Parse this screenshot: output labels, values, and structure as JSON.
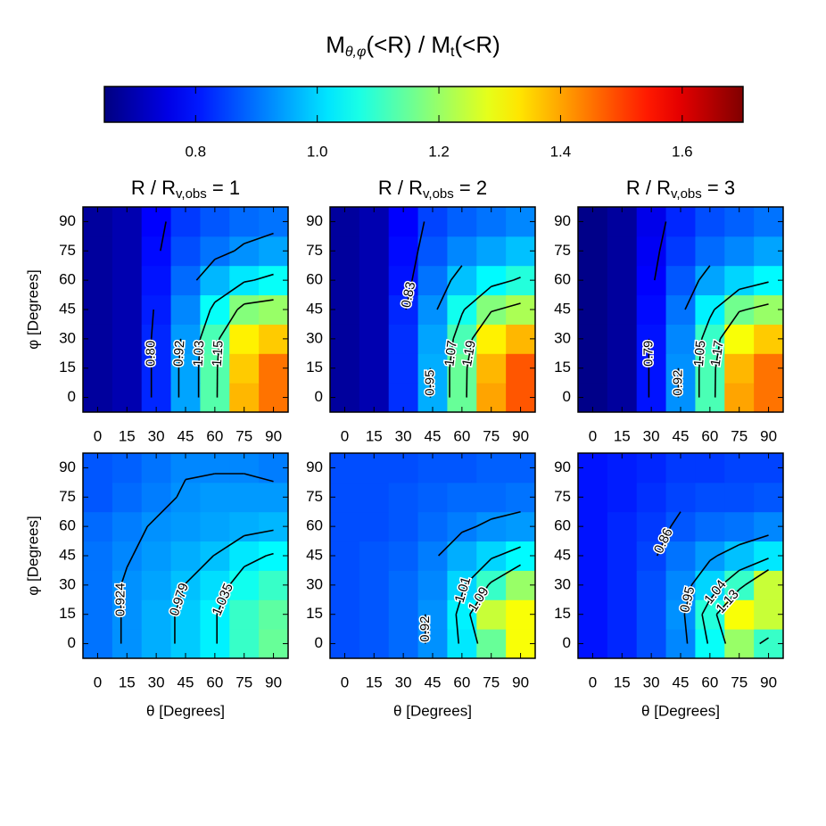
{
  "title": {
    "main": "M",
    "sub": "θ,φ",
    "mid": "(<R) / M",
    "sub2": "t",
    "end": "(<R)"
  },
  "colorbar": {
    "colormap": "jet",
    "clim": [
      0.65,
      1.7
    ],
    "ticks": [
      0.8,
      {
        "value": 1.0,
        "label": "1.0"
      },
      1.2,
      1.4,
      1.6
    ]
  },
  "chart_data": [
    {
      "type": "heatmap",
      "title": {
        "text": "R / R",
        "sub": "v,obs",
        "tail": " = 1"
      },
      "ylabel": "φ [Degrees]",
      "x": [
        0,
        15,
        30,
        45,
        60,
        75,
        90
      ],
      "y": [
        0,
        15,
        30,
        45,
        60,
        75,
        90
      ],
      "xlim": [
        -7.5,
        97.5
      ],
      "ylim": [
        -7.5,
        97.5
      ],
      "xticks": [
        0,
        15,
        30,
        45,
        60,
        75,
        90
      ],
      "yticks": [
        0,
        15,
        30,
        45,
        60,
        75,
        90
      ],
      "values": [
        [
          0.68,
          0.7,
          0.82,
          0.95,
          1.13,
          1.38,
          1.45
        ],
        [
          0.68,
          0.7,
          0.82,
          0.95,
          1.13,
          1.36,
          1.45
        ],
        [
          0.68,
          0.7,
          0.82,
          0.94,
          1.12,
          1.32,
          1.36
        ],
        [
          0.68,
          0.7,
          0.81,
          0.92,
          1.05,
          1.18,
          1.2
        ],
        [
          0.68,
          0.7,
          0.8,
          0.89,
          0.97,
          1.02,
          1.05
        ],
        [
          0.68,
          0.7,
          0.79,
          0.86,
          0.9,
          0.93,
          0.95
        ],
        [
          0.68,
          0.7,
          0.78,
          0.84,
          0.87,
          0.89,
          0.9
        ]
      ],
      "contour_levels": [
        {
          "value": 0.8,
          "label": "0.80"
        },
        0.92,
        1.03,
        1.15
      ]
    },
    {
      "type": "heatmap",
      "title": {
        "text": "R / R",
        "sub": "v,obs",
        "tail": " = 2"
      },
      "x": [
        0,
        15,
        30,
        45,
        60,
        75,
        90
      ],
      "y": [
        0,
        15,
        30,
        45,
        60,
        75,
        90
      ],
      "xlim": [
        -7.5,
        97.5
      ],
      "ylim": [
        -7.5,
        97.5
      ],
      "xticks": [
        0,
        15,
        30,
        45,
        60,
        75,
        90
      ],
      "yticks": [
        0,
        15,
        30,
        45,
        60,
        75,
        90
      ],
      "values": [
        [
          0.68,
          0.7,
          0.83,
          0.96,
          1.15,
          1.4,
          1.48
        ],
        [
          0.68,
          0.7,
          0.83,
          0.96,
          1.15,
          1.38,
          1.48
        ],
        [
          0.68,
          0.7,
          0.83,
          0.95,
          1.12,
          1.32,
          1.38
        ],
        [
          0.68,
          0.7,
          0.82,
          0.93,
          1.06,
          1.18,
          1.22
        ],
        [
          0.68,
          0.7,
          0.8,
          0.9,
          0.98,
          1.04,
          1.08
        ],
        [
          0.68,
          0.7,
          0.79,
          0.87,
          0.92,
          0.95,
          0.98
        ],
        [
          0.68,
          0.7,
          0.78,
          0.85,
          0.88,
          0.9,
          0.92
        ]
      ],
      "contour_levels": [
        0.83,
        0.95,
        1.07,
        1.19
      ]
    },
    {
      "type": "heatmap",
      "title": {
        "text": "R / R",
        "sub": "v,obs",
        "tail": " = 3"
      },
      "x": [
        0,
        15,
        30,
        45,
        60,
        75,
        90
      ],
      "y": [
        0,
        15,
        30,
        45,
        60,
        75,
        90
      ],
      "xlim": [
        -7.5,
        97.5
      ],
      "ylim": [
        -7.5,
        97.5
      ],
      "xticks": [
        0,
        15,
        30,
        45,
        60,
        75,
        90
      ],
      "yticks": [
        0,
        15,
        30,
        45,
        60,
        75,
        90
      ],
      "values": [
        [
          0.66,
          0.68,
          0.8,
          0.93,
          1.12,
          1.4,
          1.45
        ],
        [
          0.66,
          0.68,
          0.8,
          0.93,
          1.12,
          1.38,
          1.45
        ],
        [
          0.66,
          0.68,
          0.8,
          0.92,
          1.1,
          1.3,
          1.36
        ],
        [
          0.66,
          0.68,
          0.79,
          0.9,
          1.03,
          1.16,
          1.2
        ],
        [
          0.66,
          0.68,
          0.78,
          0.87,
          0.95,
          1.0,
          1.04
        ],
        [
          0.66,
          0.68,
          0.77,
          0.84,
          0.89,
          0.92,
          0.95
        ],
        [
          0.66,
          0.68,
          0.76,
          0.82,
          0.86,
          0.88,
          0.9
        ]
      ],
      "contour_levels": [
        0.79,
        0.92,
        1.05,
        1.17
      ]
    },
    {
      "type": "heatmap",
      "ylabel": "φ [Degrees]",
      "xlabel": "θ [Degrees]",
      "x": [
        0,
        15,
        30,
        45,
        60,
        75,
        90
      ],
      "y": [
        0,
        15,
        30,
        45,
        60,
        75,
        90
      ],
      "xlim": [
        -7.5,
        97.5
      ],
      "ylim": [
        -7.5,
        97.5
      ],
      "xticks": [
        0,
        15,
        30,
        45,
        60,
        75,
        90
      ],
      "yticks": [
        0,
        15,
        30,
        45,
        60,
        75,
        90
      ],
      "values": [
        [
          0.9,
          0.93,
          0.96,
          0.99,
          1.03,
          1.1,
          1.15
        ],
        [
          0.9,
          0.93,
          0.96,
          0.99,
          1.03,
          1.1,
          1.14
        ],
        [
          0.9,
          0.93,
          0.95,
          0.98,
          1.01,
          1.06,
          1.1
        ],
        [
          0.9,
          0.92,
          0.94,
          0.96,
          0.98,
          1.02,
          1.04
        ],
        [
          0.89,
          0.91,
          0.93,
          0.94,
          0.95,
          0.96,
          0.97
        ],
        [
          0.87,
          0.89,
          0.91,
          0.93,
          0.94,
          0.94,
          0.94
        ],
        [
          0.87,
          0.88,
          0.9,
          0.92,
          0.92,
          0.92,
          0.91
        ]
      ],
      "contour_levels": [
        0.924,
        0.979,
        1.035
      ]
    },
    {
      "type": "heatmap",
      "xlabel": "θ [Degrees]",
      "x": [
        0,
        15,
        30,
        45,
        60,
        75,
        90
      ],
      "y": [
        0,
        15,
        30,
        45,
        60,
        75,
        90
      ],
      "xlim": [
        -7.5,
        97.5
      ],
      "ylim": [
        -7.5,
        97.5
      ],
      "xticks": [
        0,
        15,
        30,
        45,
        60,
        75,
        90
      ],
      "yticks": [
        0,
        15,
        30,
        45,
        60,
        75,
        90
      ],
      "values": [
        [
          0.86,
          0.87,
          0.89,
          0.93,
          1.02,
          1.15,
          1.3
        ],
        [
          0.86,
          0.87,
          0.89,
          0.93,
          1.03,
          1.25,
          1.3
        ],
        [
          0.86,
          0.87,
          0.89,
          0.92,
          1.0,
          1.1,
          1.2
        ],
        [
          0.86,
          0.87,
          0.88,
          0.91,
          0.96,
          1.0,
          1.04
        ],
        [
          0.86,
          0.86,
          0.87,
          0.89,
          0.91,
          0.93,
          0.94
        ],
        [
          0.86,
          0.86,
          0.87,
          0.88,
          0.89,
          0.89,
          0.9
        ],
        [
          0.86,
          0.86,
          0.86,
          0.87,
          0.87,
          0.88,
          0.88
        ]
      ],
      "contour_levels": [
        0.92,
        1.01,
        1.09
      ]
    },
    {
      "type": "heatmap",
      "xlabel": "θ [Degrees]",
      "x": [
        0,
        15,
        30,
        45,
        60,
        75,
        90
      ],
      "y": [
        0,
        15,
        30,
        45,
        60,
        75,
        90
      ],
      "xlim": [
        -7.5,
        97.5
      ],
      "ylim": [
        -7.5,
        97.5
      ],
      "xticks": [
        0,
        15,
        30,
        45,
        60,
        75,
        90
      ],
      "yticks": [
        0,
        15,
        30,
        45,
        60,
        75,
        90
      ],
      "values": [
        [
          0.8,
          0.82,
          0.86,
          0.92,
          1.05,
          1.2,
          1.1
        ],
        [
          0.8,
          0.82,
          0.86,
          0.93,
          1.08,
          1.3,
          1.25
        ],
        [
          0.8,
          0.82,
          0.86,
          0.92,
          1.0,
          1.1,
          1.25
        ],
        [
          0.8,
          0.82,
          0.85,
          0.9,
          0.94,
          0.98,
          1.02
        ],
        [
          0.8,
          0.82,
          0.84,
          0.87,
          0.89,
          0.9,
          0.92
        ],
        [
          0.8,
          0.81,
          0.83,
          0.85,
          0.86,
          0.86,
          0.87
        ],
        [
          0.8,
          0.81,
          0.82,
          0.84,
          0.84,
          0.85,
          0.85
        ]
      ],
      "contour_levels": [
        0.86,
        0.95,
        1.04,
        1.13
      ]
    }
  ]
}
